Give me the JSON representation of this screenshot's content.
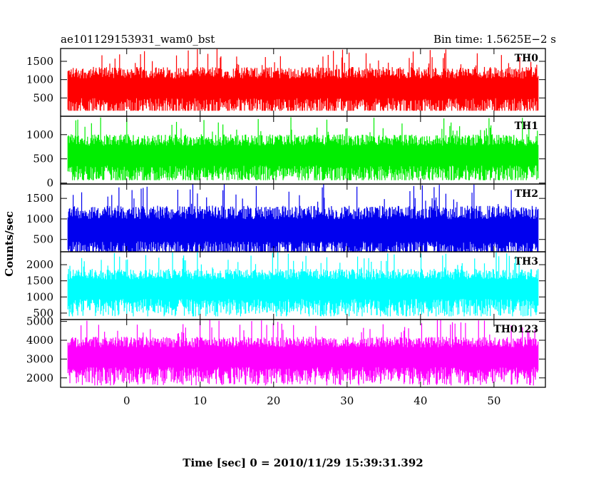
{
  "chart_data": {
    "type": "line",
    "title": "ae101129153931_wam0_bst",
    "bin_time": "Bin time: 1.5625E−2 s",
    "xlabel": "Time [sec] 0 = 2010/11/29 15:39:31.392",
    "ylabel": "Counts/sec",
    "xlim": [
      -9,
      57
    ],
    "x_data_range": [
      -8,
      56
    ],
    "x_ticks": [
      0,
      10,
      20,
      30,
      40,
      50
    ],
    "grid": false,
    "series": [
      {
        "name": "TH0",
        "color": "#ff0000",
        "ylim": [
          0,
          1850
        ],
        "y_ticks": [
          500,
          1000,
          1500
        ],
        "mean": 800,
        "min": 150,
        "max": 1850
      },
      {
        "name": "TH1",
        "color": "#00ee00",
        "ylim": [
          -20,
          1380
        ],
        "y_ticks": [
          0,
          500,
          1000
        ],
        "mean": 600,
        "min": 60,
        "max": 1380
      },
      {
        "name": "TH2",
        "color": "#0000ee",
        "ylim": [
          200,
          1850
        ],
        "y_ticks": [
          500,
          1000,
          1500
        ],
        "mean": 750,
        "min": 200,
        "max": 1850
      },
      {
        "name": "TH3",
        "color": "#00ffff",
        "ylim": [
          300,
          2400
        ],
        "y_ticks": [
          500,
          1000,
          1500,
          2000
        ],
        "mean": 1300,
        "min": 400,
        "max": 2400
      },
      {
        "name": "TH0123",
        "color": "#ff00ff",
        "ylim": [
          1500,
          5100
        ],
        "y_ticks": [
          2000,
          3000,
          4000,
          5000
        ],
        "mean": 3200,
        "min": 1600,
        "max": 5100
      }
    ]
  }
}
